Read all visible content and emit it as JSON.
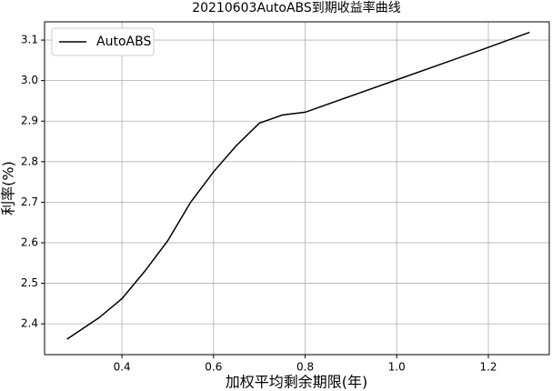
{
  "chart_data": {
    "type": "line",
    "title": "20210603AutoABS到期收益率曲线",
    "xlabel": "加权平均剩余期限(年)",
    "ylabel": "利率(%)",
    "x": [
      0.28,
      0.35,
      0.4,
      0.45,
      0.5,
      0.55,
      0.6,
      0.65,
      0.7,
      0.75,
      0.8,
      0.9,
      1.0,
      1.1,
      1.2,
      1.29
    ],
    "series": [
      {
        "name": "AutoABS",
        "color": "#000000",
        "values": [
          2.362,
          2.415,
          2.462,
          2.53,
          2.605,
          2.7,
          2.775,
          2.84,
          2.895,
          2.915,
          2.922,
          2.962,
          3.002,
          3.042,
          3.082,
          3.119
        ]
      }
    ],
    "xlim": [
      0.231,
      1.333
    ],
    "ylim": [
      2.324,
      3.145
    ],
    "xticks": [
      0.4,
      0.6,
      0.8,
      {
        "value": 1.0,
        "label": "1.0"
      },
      1.2
    ],
    "yticks": [
      2.4,
      2.5,
      2.6,
      2.7,
      2.8,
      2.9,
      {
        "value": 3.0,
        "label": "3.0"
      },
      3.1
    ],
    "grid": true,
    "legend": "upper-left"
  }
}
